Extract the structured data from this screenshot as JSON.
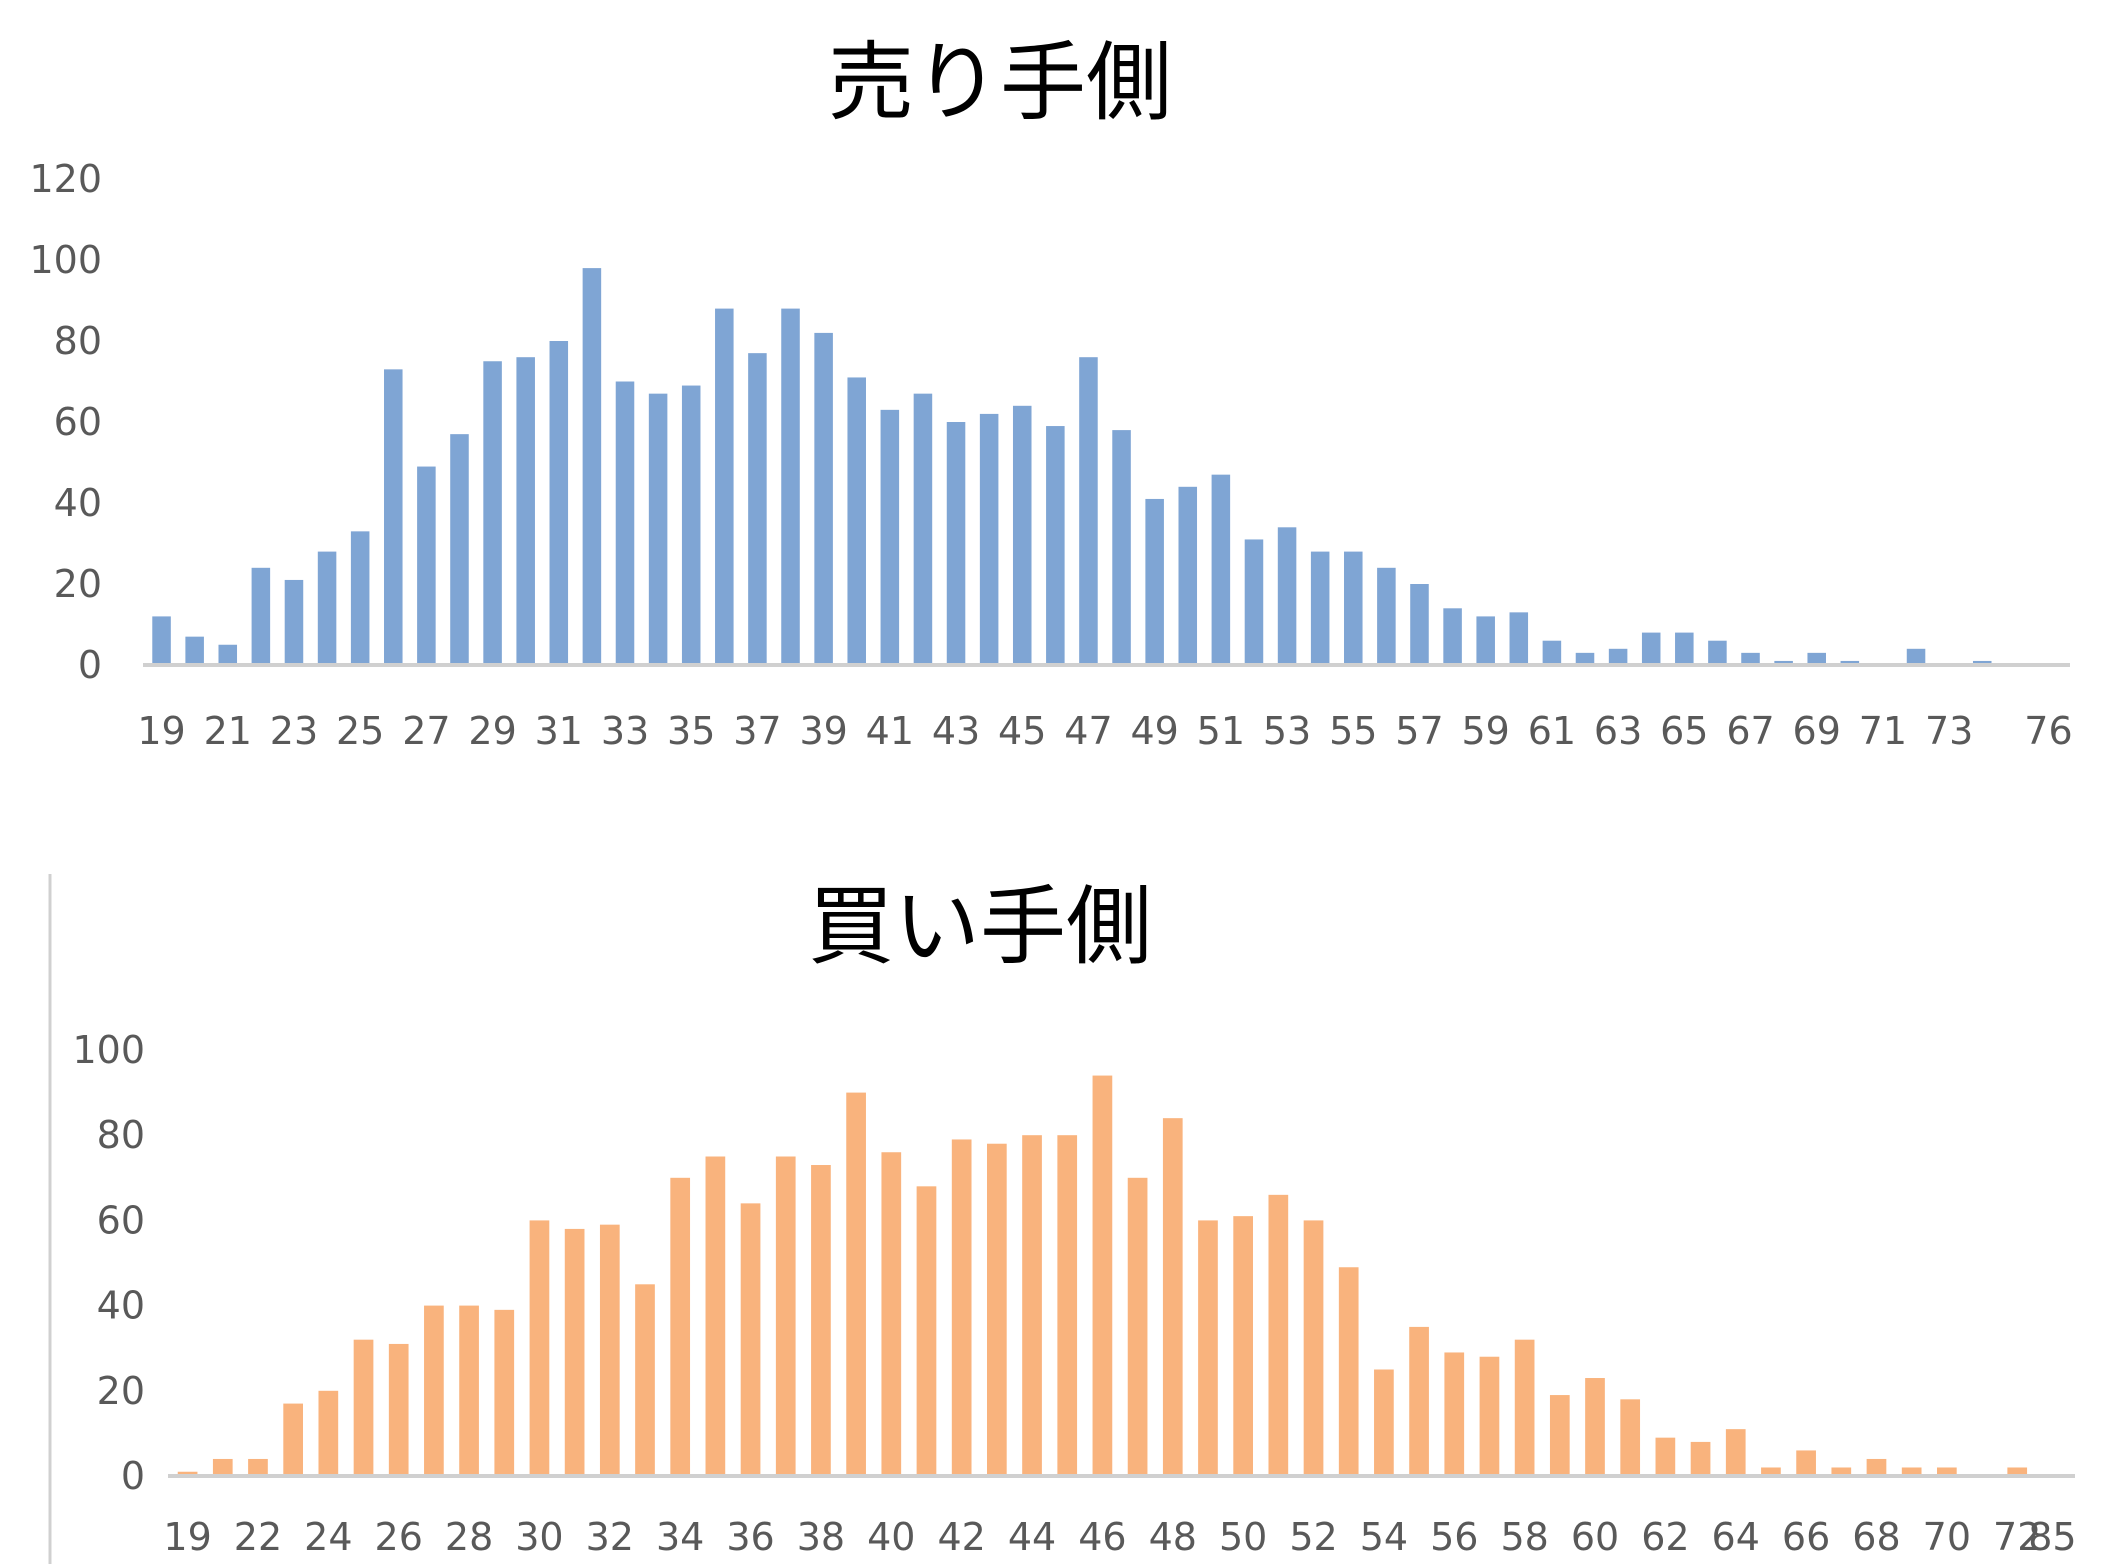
{
  "chart_data": [
    {
      "type": "bar",
      "title": "売り手側",
      "color": "#7fa5d4",
      "ylim": [
        0,
        120
      ],
      "yticks": [
        0,
        20,
        40,
        60,
        80,
        100,
        120
      ],
      "xtick_labels": [
        "19",
        "21",
        "23",
        "25",
        "27",
        "29",
        "31",
        "33",
        "35",
        "37",
        "39",
        "41",
        "43",
        "45",
        "47",
        "49",
        "51",
        "53",
        "55",
        "57",
        "59",
        "61",
        "63",
        "65",
        "67",
        "69",
        "71",
        "73",
        "76"
      ],
      "categories": [
        "19",
        "20",
        "21",
        "22",
        "23",
        "24",
        "25",
        "26",
        "27",
        "28",
        "29",
        "30",
        "31",
        "32",
        "33",
        "34",
        "35",
        "36",
        "37",
        "38",
        "39",
        "40",
        "41",
        "42",
        "43",
        "44",
        "45",
        "46",
        "47",
        "48",
        "49",
        "50",
        "51",
        "52",
        "53",
        "54",
        "55",
        "56",
        "57",
        "58",
        "59",
        "60",
        "61",
        "62",
        "63",
        "64",
        "65",
        "66",
        "67",
        "68",
        "69",
        "70",
        "71",
        "72",
        "73",
        "74",
        "75",
        "76"
      ],
      "values": [
        12,
        7,
        5,
        24,
        21,
        28,
        33,
        73,
        49,
        57,
        75,
        76,
        80,
        98,
        70,
        67,
        69,
        88,
        77,
        88,
        82,
        71,
        63,
        67,
        60,
        62,
        64,
        59,
        76,
        58,
        41,
        44,
        47,
        31,
        34,
        28,
        28,
        24,
        20,
        14,
        12,
        13,
        6,
        3,
        4,
        8,
        8,
        6,
        3,
        1,
        3,
        1,
        0,
        4,
        0,
        1,
        0,
        0
      ],
      "xlabel": "",
      "ylabel": "",
      "legend": "none",
      "grid": false
    },
    {
      "type": "bar",
      "title": "買い手側",
      "color": "#f9b37d",
      "ylim": [
        0,
        100
      ],
      "yticks": [
        0,
        20,
        40,
        60,
        80,
        100
      ],
      "xtick_labels": [
        "19",
        "22",
        "24",
        "26",
        "28",
        "30",
        "32",
        "34",
        "36",
        "38",
        "40",
        "42",
        "44",
        "46",
        "48",
        "50",
        "52",
        "54",
        "56",
        "58",
        "60",
        "62",
        "64",
        "66",
        "68",
        "70",
        "72",
        "85"
      ],
      "categories": [
        "19",
        "20",
        "22",
        "23",
        "24",
        "25",
        "26",
        "27",
        "28",
        "29",
        "30",
        "31",
        "32",
        "33",
        "34",
        "35",
        "36",
        "37",
        "38",
        "39",
        "40",
        "41",
        "42",
        "43",
        "44",
        "45",
        "46",
        "47",
        "48",
        "49",
        "50",
        "51",
        "52",
        "53",
        "54",
        "55",
        "56",
        "57",
        "58",
        "59",
        "60",
        "61",
        "62",
        "63",
        "64",
        "65",
        "66",
        "67",
        "68",
        "69",
        "70",
        "71",
        "72",
        "85"
      ],
      "values": [
        1,
        4,
        4,
        17,
        20,
        32,
        31,
        40,
        40,
        39,
        60,
        58,
        59,
        45,
        70,
        75,
        64,
        75,
        73,
        90,
        76,
        68,
        79,
        78,
        80,
        80,
        94,
        70,
        84,
        60,
        61,
        66,
        60,
        49,
        25,
        35,
        29,
        28,
        32,
        19,
        23,
        18,
        9,
        8,
        11,
        2,
        6,
        2,
        4,
        2,
        2,
        0,
        2,
        0
      ],
      "xlabel": "",
      "ylabel": "",
      "legend": "none",
      "grid": false
    }
  ]
}
